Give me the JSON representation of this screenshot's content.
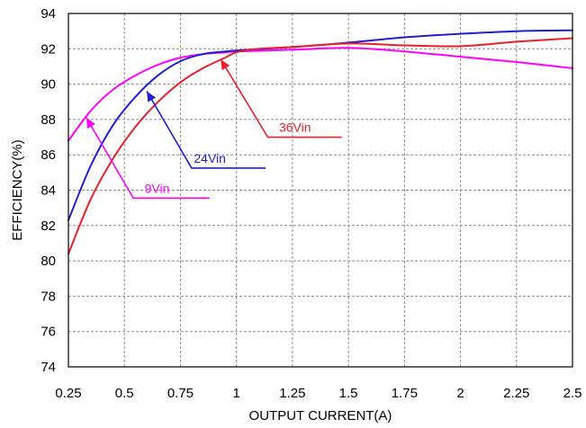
{
  "chart_data": {
    "type": "line",
    "title": "",
    "xlabel": "OUTPUT CURRENT(A)",
    "ylabel": "EFFICIENCY(%)",
    "xlim": [
      0.25,
      2.5
    ],
    "ylim": [
      74,
      94
    ],
    "xticks": [
      0.25,
      0.5,
      0.75,
      1,
      1.25,
      1.5,
      1.75,
      2,
      2.25,
      2.5
    ],
    "xtick_labels": [
      "0.25",
      "0.5",
      "0.75",
      "1",
      "1.25",
      "1.5",
      "1.75",
      "2",
      "2.25",
      "2.5"
    ],
    "yticks": [
      74,
      76,
      78,
      80,
      82,
      84,
      86,
      88,
      90,
      92,
      94
    ],
    "ytick_labels": [
      "74",
      "76",
      "78",
      "80",
      "82",
      "84",
      "86",
      "88",
      "90",
      "92",
      "94"
    ],
    "grid": true,
    "series": [
      {
        "name": "9Vin",
        "color": "#ff00ff",
        "x": [
          0.25,
          0.35,
          0.45,
          0.55,
          0.65,
          0.75,
          0.85,
          0.95,
          1.0,
          1.25,
          1.5,
          1.75,
          2.0,
          2.25,
          2.5
        ],
        "y": [
          86.8,
          88.5,
          89.7,
          90.5,
          91.1,
          91.5,
          91.7,
          91.8,
          91.85,
          91.95,
          92.05,
          91.85,
          91.55,
          91.25,
          90.9
        ]
      },
      {
        "name": "24Vin",
        "color": "#1f1fd0",
        "x": [
          0.25,
          0.35,
          0.45,
          0.55,
          0.65,
          0.75,
          0.85,
          0.95,
          1.0,
          1.25,
          1.5,
          1.75,
          2.0,
          2.25,
          2.5
        ],
        "y": [
          82.3,
          85.4,
          87.7,
          89.3,
          90.5,
          91.3,
          91.7,
          91.85,
          91.9,
          92.1,
          92.35,
          92.65,
          92.85,
          93.0,
          93.05
        ]
      },
      {
        "name": "36Vin",
        "color": "#e8202a",
        "x": [
          0.25,
          0.35,
          0.45,
          0.55,
          0.65,
          0.75,
          0.85,
          0.95,
          1.0,
          1.1,
          1.25,
          1.5,
          1.75,
          2.0,
          2.25,
          2.5
        ],
        "y": [
          80.4,
          83.5,
          85.8,
          87.6,
          89.0,
          90.1,
          90.9,
          91.5,
          91.8,
          92.0,
          92.1,
          92.3,
          92.2,
          92.15,
          92.4,
          92.6
        ]
      }
    ],
    "annotations": [
      {
        "text": "9Vin",
        "series": "9Vin",
        "color": "#ff00ff",
        "arrow_tip": [
          0.33,
          88.1
        ],
        "elbow": [
          0.54,
          83.55
        ],
        "line_end": [
          0.88,
          83.55
        ],
        "label_at": [
          0.59,
          83.85
        ]
      },
      {
        "text": "24Vin",
        "series": "24Vin",
        "color": "#1f1fd0",
        "arrow_tip": [
          0.6,
          89.6
        ],
        "elbow": [
          0.8,
          85.25
        ],
        "line_end": [
          1.13,
          85.25
        ],
        "label_at": [
          0.81,
          85.55
        ]
      },
      {
        "text": "36Vin",
        "series": "36Vin",
        "color": "#e8202a",
        "arrow_tip": [
          0.93,
          91.4
        ],
        "elbow": [
          1.14,
          87.0
        ],
        "line_end": [
          1.47,
          87.0
        ],
        "label_at": [
          1.19,
          87.3
        ]
      }
    ]
  }
}
